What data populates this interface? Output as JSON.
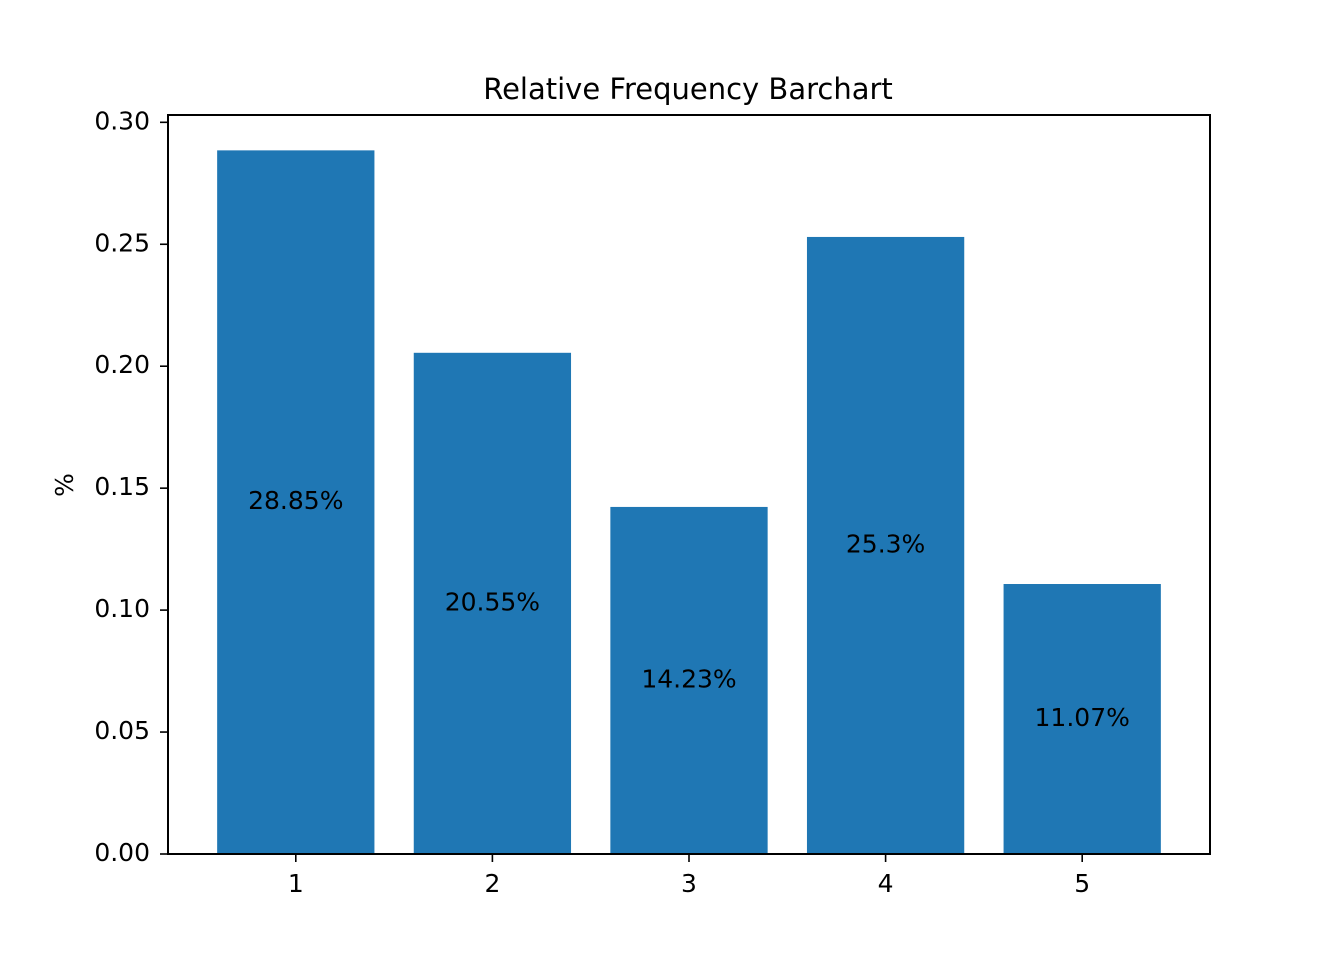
{
  "chart_data": {
    "type": "bar",
    "title": "Relative Frequency Barchart",
    "xlabel": "",
    "ylabel": "%",
    "categories": [
      "1",
      "2",
      "3",
      "4",
      "5"
    ],
    "values": [
      0.2885,
      0.2055,
      0.1423,
      0.253,
      0.1107
    ],
    "data_labels": [
      "28.85%",
      "20.55%",
      "14.23%",
      "25.3%",
      "11.07%"
    ],
    "ylim": [
      0,
      0.303
    ],
    "yticks": [
      0.0,
      0.05,
      0.1,
      0.15,
      0.2,
      0.25,
      0.3
    ],
    "ytick_labels": [
      "0.00",
      "0.05",
      "0.10",
      "0.15",
      "0.20",
      "0.25",
      "0.30"
    ],
    "grid": false,
    "bar_color": "#1f77b4"
  }
}
